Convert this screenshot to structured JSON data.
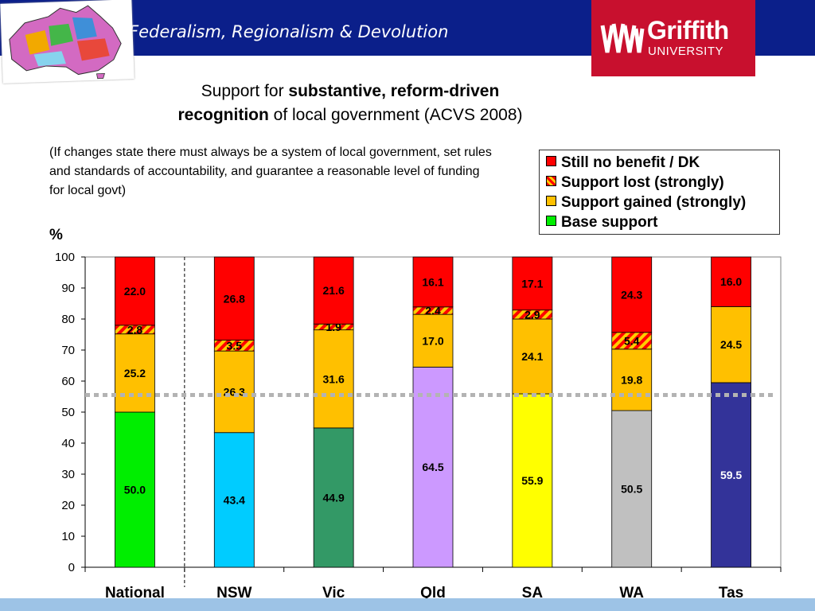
{
  "header": {
    "banner_title": "Federalism, Regionalism & Devolution",
    "logo_name": "Griffith",
    "logo_sub": "UNIVERSITY"
  },
  "title": {
    "part1": "Support for ",
    "bold1": "substantive, reform-driven",
    "bold2": "recognition",
    "part2": " of local government (ACVS 2008)"
  },
  "subtitle": "(If changes state there must always be a system of local government, set rules and standards of accountability, and guarantee a reasonable level of funding for local govt)",
  "y_unit": "%",
  "legend": [
    {
      "label": "Still no benefit / DK",
      "style": "red"
    },
    {
      "label": "Support lost (strongly)",
      "style": "hatch"
    },
    {
      "label": "Support gained (strongly)",
      "style": "gold"
    },
    {
      "label": "Base support",
      "style": "green"
    }
  ],
  "colors": {
    "still_no_benefit": "#ff0000",
    "support_gained": "#ffc000",
    "hatch_red": "#ff0000",
    "hatch_yellow": "#ffcc00",
    "banner": "#0b1f8a",
    "reference_line": "#b3b3b3"
  },
  "chart_data": {
    "type": "bar",
    "stacked": true,
    "ylim": [
      0,
      100
    ],
    "yticks": [
      0,
      10,
      20,
      30,
      40,
      50,
      60,
      70,
      80,
      90,
      100
    ],
    "categories": [
      "National",
      "NSW",
      "Vic",
      "Qld",
      "SA",
      "WA",
      "Tas"
    ],
    "base_colors": [
      "#00ee00",
      "#00ccff",
      "#339966",
      "#cc99ff",
      "#ffff00",
      "#c0c0c0",
      "#333399"
    ],
    "base_label_colors": [
      "#000000",
      "#000000",
      "#000000",
      "#000000",
      "#000000",
      "#000000",
      "#ffffff"
    ],
    "series": [
      {
        "name": "Base support",
        "values": [
          50.0,
          43.4,
          44.9,
          64.5,
          55.9,
          50.5,
          59.5
        ]
      },
      {
        "name": "Support gained (strongly)",
        "values": [
          25.2,
          26.3,
          31.6,
          17.0,
          24.1,
          19.8,
          24.5
        ]
      },
      {
        "name": "Support lost (strongly)",
        "values": [
          2.8,
          3.5,
          1.9,
          2.4,
          2.9,
          5.4,
          null
        ]
      },
      {
        "name": "Still no benefit / DK",
        "values": [
          22.0,
          26.8,
          21.6,
          16.1,
          17.1,
          24.3,
          16.0
        ]
      }
    ],
    "reference_line": 55.5,
    "separator_after_category": "National"
  }
}
